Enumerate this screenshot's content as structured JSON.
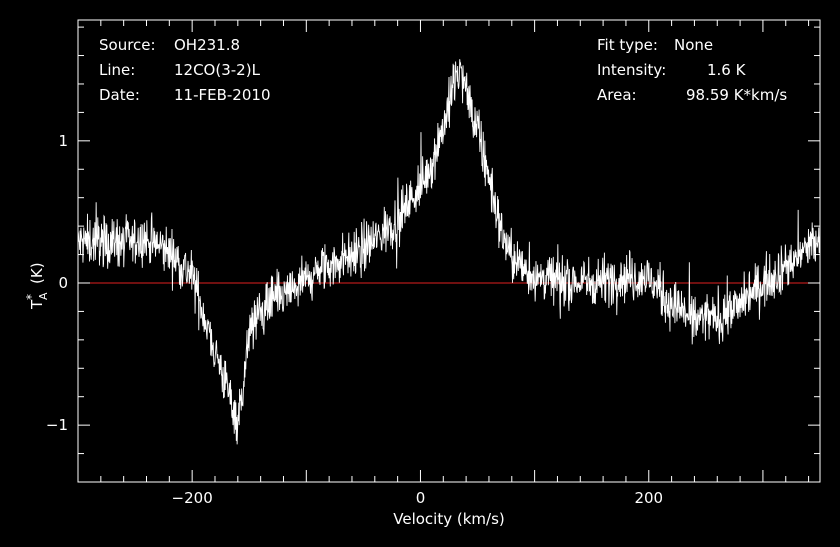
{
  "info": {
    "source_label": "Source:",
    "source_value": "OH231.8",
    "line_label": "Line:",
    "line_value": "12CO(3-2)L",
    "date_label": "Date:",
    "date_value": "11-FEB-2010",
    "fit_label": "Fit type:",
    "fit_value": "None",
    "intensity_label": "Intensity:",
    "intensity_value": "1.6 K",
    "area_label": "Area:",
    "area_value": "98.59 K*km/s"
  },
  "colors": {
    "background": "#000000",
    "foreground": "#ffffff",
    "baseline": "#e02020"
  },
  "chart_data": {
    "type": "line",
    "title": "",
    "xlabel": "Velocity (km/s)",
    "ylabel_main": "T",
    "ylabel_sup": "*",
    "ylabel_sub": "A",
    "ylabel_unit": "(K)",
    "xlim": [
      -300,
      350
    ],
    "ylim": [
      -1.4,
      1.85
    ],
    "x_ticks": [
      -200,
      0,
      200
    ],
    "x_tick_labels": [
      "−200",
      "0",
      "200"
    ],
    "y_ticks": [
      -1,
      0,
      1
    ],
    "y_tick_labels": [
      "−1",
      "0",
      "1"
    ],
    "baseline_y": 0,
    "grid": false,
    "series": [
      {
        "x": [
          -300,
          -280,
          -260,
          -240,
          -220,
          -200,
          -185,
          -175,
          -165,
          -160,
          -155,
          -150,
          -140,
          -130,
          -120,
          -100,
          -80,
          -60,
          -40,
          -20,
          0,
          10,
          20,
          30,
          35,
          40,
          50,
          60,
          70,
          80,
          90,
          100,
          120,
          140,
          160,
          180,
          200,
          220,
          240,
          260,
          280,
          300,
          320,
          340,
          350
        ],
        "y": [
          0.28,
          0.3,
          0.28,
          0.3,
          0.22,
          0.05,
          -0.35,
          -0.6,
          -0.85,
          -0.95,
          -0.7,
          -0.35,
          -0.2,
          -0.12,
          -0.1,
          0.02,
          0.12,
          0.2,
          0.3,
          0.45,
          0.68,
          0.85,
          1.1,
          1.4,
          1.5,
          1.35,
          1.05,
          0.75,
          0.38,
          0.18,
          0.1,
          0.05,
          0.02,
          0.0,
          0.02,
          0.05,
          0.03,
          -0.15,
          -0.25,
          -0.25,
          -0.15,
          0.0,
          0.12,
          0.25,
          0.3
        ]
      }
    ]
  }
}
